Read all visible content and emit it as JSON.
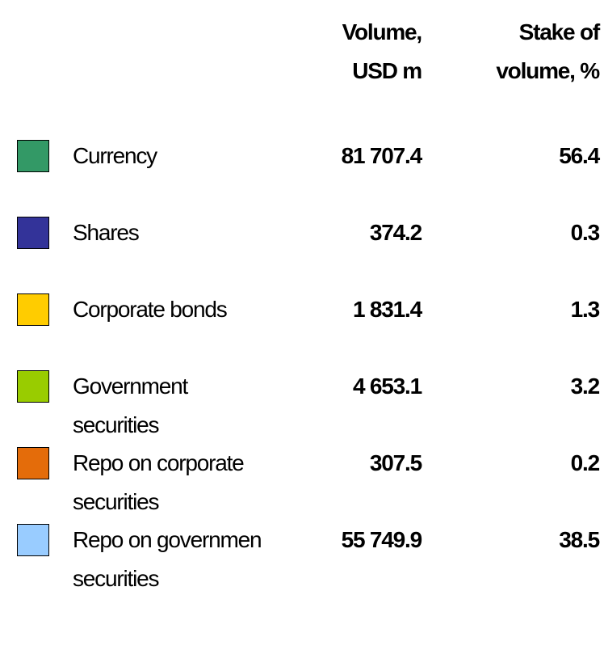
{
  "table": {
    "headers": [
      [
        "Volume,",
        "USD m"
      ],
      [
        "Stake of",
        "volume, %"
      ]
    ],
    "rows": [
      {
        "color": "#339966",
        "label": [
          "Currency"
        ],
        "volume": "81 707.4",
        "stake": "56.4"
      },
      {
        "color": "#333399",
        "label": [
          "Shares"
        ],
        "volume": "374.2",
        "stake": "0.3"
      },
      {
        "color": "#ffcc00",
        "label": [
          "Corporate bonds"
        ],
        "volume": "1 831.4",
        "stake": "1.3"
      },
      {
        "color": "#99cc00",
        "label": [
          "Government",
          "securities"
        ],
        "volume": "4 653.1",
        "stake": "3.2"
      },
      {
        "color": "#e46c0a",
        "label": [
          "Repo on corporate",
          "securities"
        ],
        "volume": "307.5",
        "stake": "0.2"
      },
      {
        "color": "#99ccff",
        "label": [
          "Repo on governmen",
          "securities"
        ],
        "volume": "55 749.9",
        "stake": "38.5"
      }
    ]
  }
}
